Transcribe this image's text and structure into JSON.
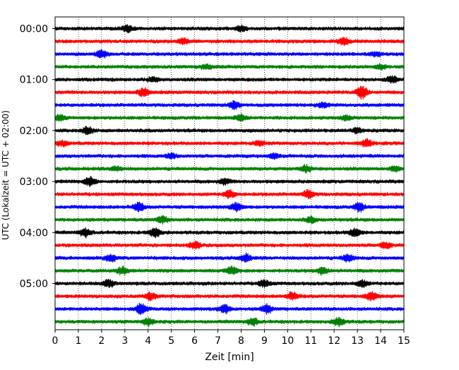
{
  "chart_data": {
    "type": "line",
    "title": "",
    "xlabel": "Zeit  [min]",
    "ylabel": "UTC (Lokalzeit = UTC + 02:00)",
    "xlim": [
      0,
      15
    ],
    "x_ticks": [
      "0",
      "1",
      "2",
      "3",
      "4",
      "5",
      "6",
      "7",
      "8",
      "9",
      "10",
      "11",
      "12",
      "13",
      "14",
      "15"
    ],
    "y_ticks": [
      "00:00",
      "01:00",
      "02:00",
      "03:00",
      "04:00",
      "05:00"
    ],
    "grid": "vertical dotted at each minute",
    "trace_interval_min": 15,
    "color_cycle": [
      "#000000",
      "#ff0000",
      "#0000ff",
      "#008000"
    ],
    "series": [
      {
        "start": "00:00",
        "color": "#000000",
        "events": [
          [
            3.1,
            0.7
          ],
          [
            8.0,
            0.6
          ]
        ]
      },
      {
        "start": "00:15",
        "color": "#ff0000",
        "events": [
          [
            5.5,
            0.6
          ],
          [
            12.4,
            0.7
          ]
        ]
      },
      {
        "start": "00:30",
        "color": "#0000ff",
        "events": [
          [
            2.0,
            0.8
          ],
          [
            13.8,
            0.5
          ]
        ]
      },
      {
        "start": "00:45",
        "color": "#008000",
        "events": [
          [
            6.5,
            0.5
          ],
          [
            14.0,
            0.5
          ]
        ]
      },
      {
        "start": "01:00",
        "color": "#000000",
        "events": [
          [
            4.2,
            0.5
          ],
          [
            14.5,
            0.7
          ]
        ]
      },
      {
        "start": "01:15",
        "color": "#ff0000",
        "events": [
          [
            3.8,
            0.9
          ],
          [
            13.2,
            1.3
          ]
        ]
      },
      {
        "start": "01:30",
        "color": "#0000ff",
        "events": [
          [
            7.7,
            0.8
          ],
          [
            11.5,
            0.5
          ]
        ]
      },
      {
        "start": "01:45",
        "color": "#008000",
        "events": [
          [
            0.2,
            0.6
          ],
          [
            8.0,
            0.6
          ],
          [
            12.5,
            0.5
          ]
        ]
      },
      {
        "start": "02:00",
        "color": "#000000",
        "events": [
          [
            1.4,
            0.8
          ],
          [
            13.0,
            0.5
          ]
        ]
      },
      {
        "start": "02:15",
        "color": "#ff0000",
        "events": [
          [
            0.3,
            0.6
          ],
          [
            8.8,
            0.5
          ],
          [
            13.4,
            0.8
          ]
        ]
      },
      {
        "start": "02:30",
        "color": "#0000ff",
        "events": [
          [
            5.0,
            0.5
          ],
          [
            9.4,
            0.5
          ]
        ]
      },
      {
        "start": "02:45",
        "color": "#008000",
        "events": [
          [
            2.6,
            0.5
          ],
          [
            10.8,
            0.7
          ],
          [
            14.6,
            0.5
          ]
        ]
      },
      {
        "start": "03:00",
        "color": "#000000",
        "events": [
          [
            1.5,
            1.0
          ],
          [
            7.3,
            0.6
          ]
        ]
      },
      {
        "start": "03:15",
        "color": "#ff0000",
        "events": [
          [
            7.5,
            0.8
          ],
          [
            10.9,
            0.8
          ]
        ]
      },
      {
        "start": "03:30",
        "color": "#0000ff",
        "events": [
          [
            3.6,
            0.9
          ],
          [
            7.8,
            0.9
          ],
          [
            13.1,
            0.9
          ]
        ]
      },
      {
        "start": "03:45",
        "color": "#008000",
        "events": [
          [
            4.6,
            0.7
          ],
          [
            11.0,
            0.6
          ]
        ]
      },
      {
        "start": "04:00",
        "color": "#000000",
        "events": [
          [
            1.3,
            0.9
          ],
          [
            4.3,
            1.0
          ],
          [
            12.9,
            0.9
          ]
        ]
      },
      {
        "start": "04:15",
        "color": "#ff0000",
        "events": [
          [
            6.0,
            0.7
          ],
          [
            14.2,
            0.7
          ]
        ]
      },
      {
        "start": "04:30",
        "color": "#0000ff",
        "events": [
          [
            2.4,
            0.8
          ],
          [
            8.2,
            0.8
          ],
          [
            12.6,
            0.8
          ]
        ]
      },
      {
        "start": "04:45",
        "color": "#008000",
        "events": [
          [
            2.9,
            0.8
          ],
          [
            7.6,
            0.8
          ],
          [
            11.5,
            0.8
          ]
        ]
      },
      {
        "start": "05:00",
        "color": "#000000",
        "events": [
          [
            2.3,
            0.8
          ],
          [
            9.0,
            0.7
          ],
          [
            13.2,
            0.7
          ]
        ]
      },
      {
        "start": "05:15",
        "color": "#ff0000",
        "events": [
          [
            4.1,
            0.8
          ],
          [
            10.2,
            0.8
          ],
          [
            13.6,
            0.9
          ]
        ]
      },
      {
        "start": "05:30",
        "color": "#0000ff",
        "events": [
          [
            3.7,
            1.1
          ],
          [
            7.3,
            0.9
          ],
          [
            9.1,
            0.9
          ]
        ]
      },
      {
        "start": "05:45",
        "color": "#008000",
        "events": [
          [
            4.0,
            0.8
          ],
          [
            8.5,
            0.8
          ],
          [
            12.2,
            0.9
          ]
        ]
      }
    ]
  }
}
